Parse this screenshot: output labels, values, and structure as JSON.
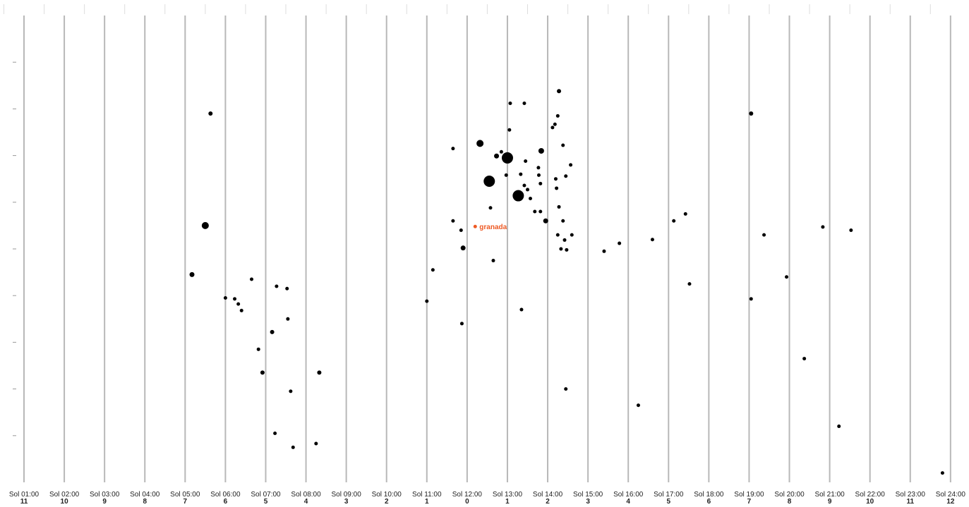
{
  "chart_data": {
    "type": "scatter",
    "grid": "vertical",
    "legend": "none",
    "columns": [
      {
        "label": "Sol 01:00",
        "offset": "11"
      },
      {
        "label": "Sol 02:00",
        "offset": "10"
      },
      {
        "label": "Sol 03:00",
        "offset": "9"
      },
      {
        "label": "Sol 04:00",
        "offset": "8"
      },
      {
        "label": "Sol 05:00",
        "offset": "7"
      },
      {
        "label": "Sol 06:00",
        "offset": "6"
      },
      {
        "label": "Sol 07:00",
        "offset": "5"
      },
      {
        "label": "Sol 08:00",
        "offset": "4"
      },
      {
        "label": "Sol 09:00",
        "offset": "3"
      },
      {
        "label": "Sol 10:00",
        "offset": "2"
      },
      {
        "label": "Sol 11:00",
        "offset": "1"
      },
      {
        "label": "Sol 12:00",
        "offset": "0"
      },
      {
        "label": "Sol 13:00",
        "offset": "1"
      },
      {
        "label": "Sol 14:00",
        "offset": "2"
      },
      {
        "label": "Sol 15:00",
        "offset": "3"
      },
      {
        "label": "Sol 16:00",
        "offset": "4"
      },
      {
        "label": "Sol 17:00",
        "offset": "5"
      },
      {
        "label": "Sol 18:00",
        "offset": "6"
      },
      {
        "label": "Sol 19:00",
        "offset": "7"
      },
      {
        "label": "Sol 20:00",
        "offset": "8"
      },
      {
        "label": "Sol 21:00",
        "offset": "9"
      },
      {
        "label": "Sol 22:00",
        "offset": "10"
      },
      {
        "label": "Sol 23:00",
        "offset": "11"
      },
      {
        "label": "Sol 24:00",
        "offset": "12"
      }
    ],
    "x_range": [
      0.5,
      24.5
    ],
    "y_range": [
      0,
      10
    ],
    "y_ticks": [
      1,
      2,
      3,
      4,
      5,
      6,
      7,
      8,
      9
    ],
    "points": [
      {
        "x": 5.63,
        "y": 7.9,
        "r": 3
      },
      {
        "x": 5.5,
        "y": 5.5,
        "r": 5
      },
      {
        "x": 5.17,
        "y": 4.45,
        "r": 3.5
      },
      {
        "x": 6.0,
        "y": 3.95,
        "r": 2.5
      },
      {
        "x": 6.23,
        "y": 3.93,
        "r": 2.5
      },
      {
        "x": 6.32,
        "y": 3.82,
        "r": 2.5
      },
      {
        "x": 6.4,
        "y": 3.68,
        "r": 2.5
      },
      {
        "x": 6.65,
        "y": 4.35,
        "r": 2.5
      },
      {
        "x": 7.27,
        "y": 4.2,
        "r": 2.5
      },
      {
        "x": 7.53,
        "y": 4.15,
        "r": 2.5
      },
      {
        "x": 7.55,
        "y": 3.5,
        "r": 2.5
      },
      {
        "x": 7.16,
        "y": 3.22,
        "r": 3
      },
      {
        "x": 6.82,
        "y": 2.85,
        "r": 2.5
      },
      {
        "x": 6.92,
        "y": 2.35,
        "r": 3
      },
      {
        "x": 7.62,
        "y": 1.95,
        "r": 2.5
      },
      {
        "x": 8.33,
        "y": 2.35,
        "r": 3
      },
      {
        "x": 7.23,
        "y": 1.05,
        "r": 2.5
      },
      {
        "x": 7.68,
        "y": 0.75,
        "r": 2.5
      },
      {
        "x": 8.25,
        "y": 0.83,
        "r": 2.5
      },
      {
        "x": 11.65,
        "y": 7.15,
        "r": 2.5
      },
      {
        "x": 11.15,
        "y": 4.55,
        "r": 2.5
      },
      {
        "x": 11.0,
        "y": 3.88,
        "r": 2.5
      },
      {
        "x": 11.65,
        "y": 5.6,
        "r": 2.5
      },
      {
        "x": 11.85,
        "y": 5.4,
        "r": 2.5
      },
      {
        "x": 11.9,
        "y": 5.02,
        "r": 3.5
      },
      {
        "x": 11.87,
        "y": 3.4,
        "r": 2.5
      },
      {
        "x": 12.32,
        "y": 7.26,
        "r": 5
      },
      {
        "x": 12.55,
        "y": 6.45,
        "r": 8
      },
      {
        "x": 12.58,
        "y": 5.88,
        "r": 2.5
      },
      {
        "x": 12.65,
        "y": 4.75,
        "r": 2.5
      },
      {
        "x": 12.73,
        "y": 6.99,
        "r": 3.5
      },
      {
        "x": 12.85,
        "y": 7.08,
        "r": 2.5
      },
      {
        "x": 13.0,
        "y": 6.95,
        "r": 8
      },
      {
        "x": 12.97,
        "y": 6.58,
        "r": 2.5
      },
      {
        "x": 13.05,
        "y": 7.55,
        "r": 2.5
      },
      {
        "x": 13.07,
        "y": 8.12,
        "r": 2.5
      },
      {
        "x": 13.42,
        "y": 8.12,
        "r": 2.5
      },
      {
        "x": 13.27,
        "y": 6.14,
        "r": 8
      },
      {
        "x": 13.33,
        "y": 6.6,
        "r": 2.5
      },
      {
        "x": 13.42,
        "y": 6.36,
        "r": 2.5
      },
      {
        "x": 13.45,
        "y": 6.88,
        "r": 2.5
      },
      {
        "x": 13.5,
        "y": 6.27,
        "r": 2.5
      },
      {
        "x": 13.57,
        "y": 6.08,
        "r": 2.5
      },
      {
        "x": 13.77,
        "y": 6.74,
        "r": 2.5
      },
      {
        "x": 13.78,
        "y": 6.58,
        "r": 2.5
      },
      {
        "x": 13.82,
        "y": 6.4,
        "r": 2.5
      },
      {
        "x": 13.82,
        "y": 5.8,
        "r": 2.5
      },
      {
        "x": 13.84,
        "y": 7.1,
        "r": 4
      },
      {
        "x": 13.95,
        "y": 5.6,
        "r": 3.5
      },
      {
        "x": 14.12,
        "y": 7.6,
        "r": 2.5
      },
      {
        "x": 14.18,
        "y": 7.67,
        "r": 2.5
      },
      {
        "x": 14.2,
        "y": 6.5,
        "r": 2.5
      },
      {
        "x": 14.22,
        "y": 6.3,
        "r": 2.5
      },
      {
        "x": 14.25,
        "y": 7.85,
        "r": 2.5
      },
      {
        "x": 14.28,
        "y": 8.38,
        "r": 3
      },
      {
        "x": 14.38,
        "y": 7.22,
        "r": 2.5
      },
      {
        "x": 14.45,
        "y": 6.56,
        "r": 2.5
      },
      {
        "x": 14.57,
        "y": 6.8,
        "r": 2.5
      },
      {
        "x": 14.28,
        "y": 5.9,
        "r": 2.5
      },
      {
        "x": 13.68,
        "y": 5.8,
        "r": 2.5
      },
      {
        "x": 14.25,
        "y": 5.3,
        "r": 2.5
      },
      {
        "x": 14.33,
        "y": 5.0,
        "r": 2.5
      },
      {
        "x": 14.38,
        "y": 5.6,
        "r": 2.5
      },
      {
        "x": 14.42,
        "y": 5.19,
        "r": 2.5
      },
      {
        "x": 14.47,
        "y": 4.98,
        "r": 2.5
      },
      {
        "x": 14.6,
        "y": 5.3,
        "r": 2.5
      },
      {
        "x": 14.45,
        "y": 2.0,
        "r": 2.5
      },
      {
        "x": 13.35,
        "y": 3.7,
        "r": 2.5
      },
      {
        "x": 15.4,
        "y": 4.95,
        "r": 2.5
      },
      {
        "x": 15.78,
        "y": 5.12,
        "r": 2.5
      },
      {
        "x": 16.25,
        "y": 1.65,
        "r": 2.5
      },
      {
        "x": 16.6,
        "y": 5.2,
        "r": 2.5
      },
      {
        "x": 17.13,
        "y": 5.6,
        "r": 2.5
      },
      {
        "x": 17.42,
        "y": 5.75,
        "r": 2.5
      },
      {
        "x": 17.52,
        "y": 4.25,
        "r": 2.5
      },
      {
        "x": 19.05,
        "y": 7.9,
        "r": 3
      },
      {
        "x": 19.05,
        "y": 3.93,
        "r": 2.5
      },
      {
        "x": 19.37,
        "y": 5.3,
        "r": 2.5
      },
      {
        "x": 19.93,
        "y": 4.4,
        "r": 2.5
      },
      {
        "x": 20.37,
        "y": 2.65,
        "r": 2.5
      },
      {
        "x": 20.83,
        "y": 5.47,
        "r": 2.5
      },
      {
        "x": 21.23,
        "y": 1.2,
        "r": 2.5
      },
      {
        "x": 21.53,
        "y": 5.4,
        "r": 2.5
      },
      {
        "x": 23.8,
        "y": 0.2,
        "r": 2.5
      }
    ],
    "annotations": [
      {
        "text": "granada",
        "x": 12.2,
        "y": 5.48,
        "color": "#ee5a24"
      }
    ]
  }
}
